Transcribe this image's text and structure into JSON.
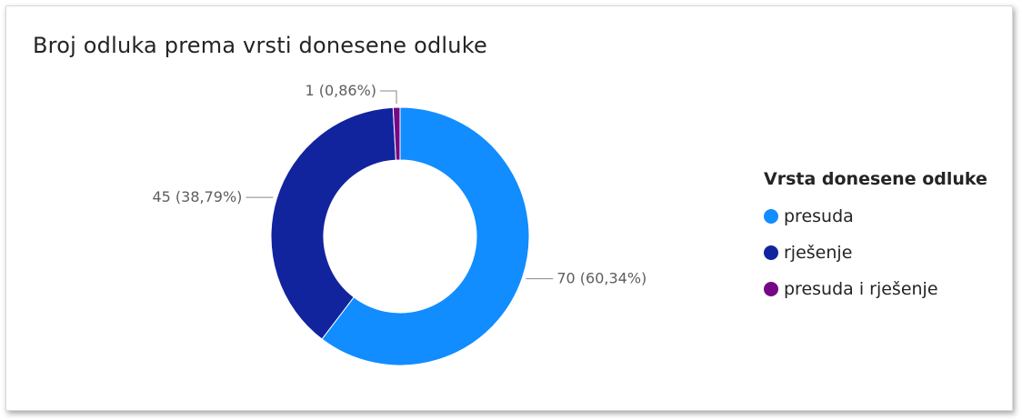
{
  "chart_data": {
    "type": "pie",
    "title": "Broj odluka prema vrsti donesene odluke",
    "legend_title": "Vrsta donesene odluke",
    "legend_position": "right",
    "donut": true,
    "slices": [
      {
        "label": "presuda",
        "value": 70,
        "percent": 60.34,
        "data_label": "70 (60,34%)",
        "color": "#118DFF"
      },
      {
        "label": "rješenje",
        "value": 45,
        "percent": 38.79,
        "data_label": "45 (38,79%)",
        "color": "#12239E"
      },
      {
        "label": "presuda i rješenje",
        "value": 1,
        "percent": 0.86,
        "data_label": "1 (0,86%)",
        "color": "#750985"
      }
    ]
  }
}
